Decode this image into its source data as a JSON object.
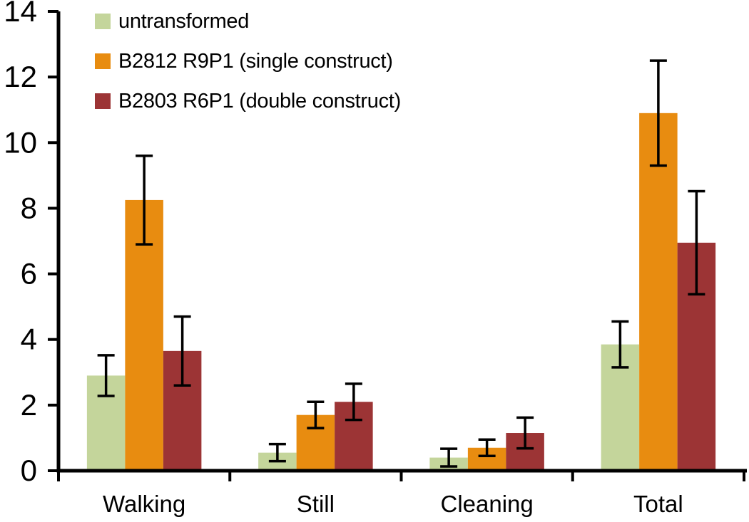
{
  "chart_data": {
    "type": "bar",
    "title": "",
    "categories": [
      "Walking",
      "Still",
      "Cleaning",
      "Total"
    ],
    "series": [
      {
        "name": "untransformed",
        "color": "#c4d59b",
        "values": [
          2.9,
          0.55,
          0.4,
          3.85
        ],
        "errors": [
          0.62,
          0.26,
          0.27,
          0.7
        ]
      },
      {
        "name": "B2812 R9P1 (single construct)",
        "color": "#e88c10",
        "values": [
          8.25,
          1.7,
          0.7,
          10.9
        ],
        "errors": [
          1.35,
          0.4,
          0.25,
          1.6
        ]
      },
      {
        "name": "B2803 R6P1 (double construct)",
        "color": "#9c3435",
        "values": [
          3.65,
          2.1,
          1.15,
          6.95
        ],
        "errors": [
          1.05,
          0.55,
          0.47,
          1.57
        ]
      }
    ],
    "xlabel": "",
    "ylabel": "",
    "ylim": [
      0,
      14
    ],
    "yticks": [
      0,
      2,
      4,
      6,
      8,
      10,
      12,
      14
    ],
    "grid": false,
    "error_bars": true,
    "legend_position": "top-left",
    "axis_color": "#000000",
    "text_color": "#000000",
    "background_color": "#ffffff"
  }
}
